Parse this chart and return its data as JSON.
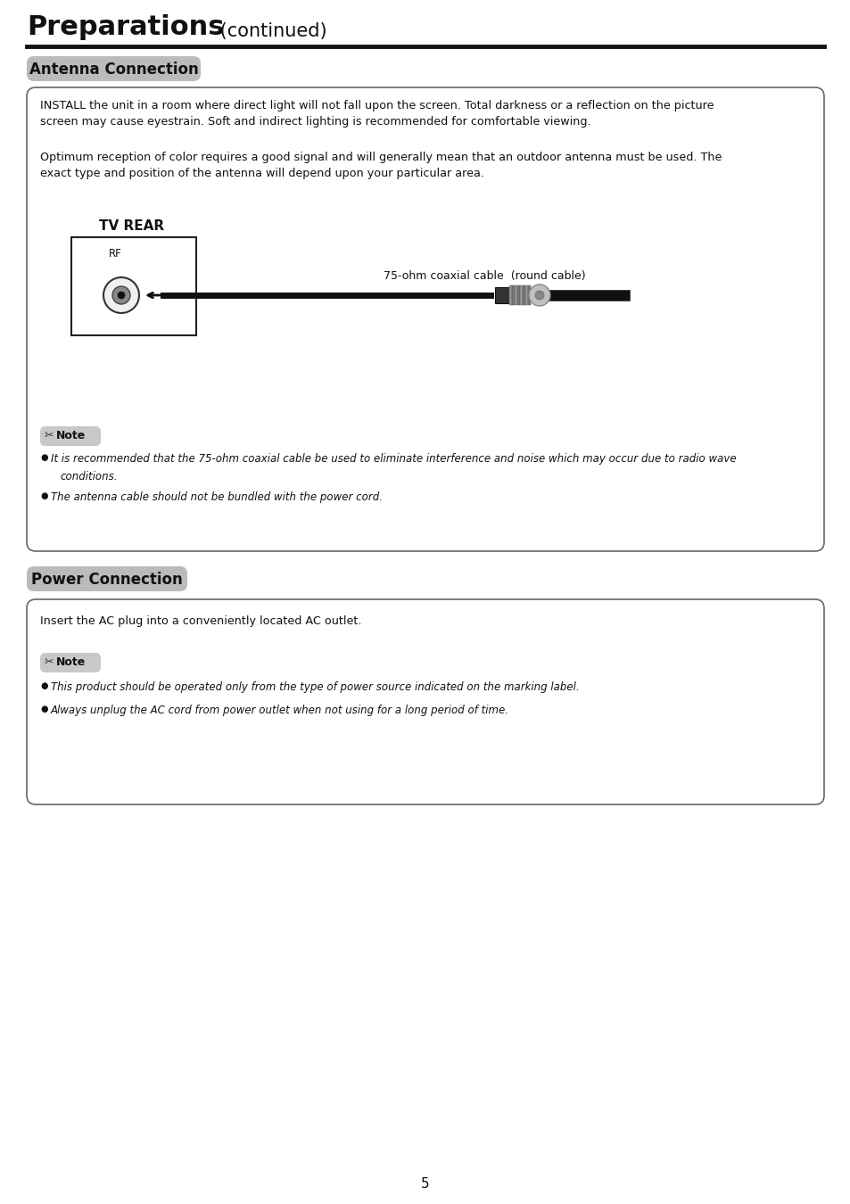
{
  "page_bg": "#ffffff",
  "title_bold": "Preparations",
  "title_normal": " (continued)",
  "section1_label": "Antenna Connection",
  "section2_label": "Power Connection",
  "antenna_para1": "INSTALL the unit in a room where direct light will not fall upon the screen. Total darkness or a reflection on the picture\nscreen may cause eyestrain. Soft and indirect lighting is recommended for comfortable viewing.",
  "antenna_para2": "Optimum reception of color requires a good signal and will generally mean that an outdoor antenna must be used. The\nexact type and position of the antenna will depend upon your particular area.",
  "tv_rear_label": "TV REAR",
  "rf_label": "RF",
  "coax_label": "75-ohm coaxial cable  (round cable)",
  "note1_b1": "It is recommended that the 75-ohm coaxial cable be used to eliminate interference and noise which may occur due to radio wave",
  "note1_b1_cont": "conditions.",
  "note1_b2": "The antenna cable should not be bundled with the power cord.",
  "power_text": "Insert the AC plug into a conveniently located AC outlet.",
  "note2_b1": "This product should be operated only from the type of power source indicated on the marking label.",
  "note2_b2": "Always unplug the AC cord from power outlet when not using for a long period of time.",
  "page_number": "5",
  "label_bg": "#bbbbbb",
  "note_bg": "#c8c8c8",
  "box_border": "#666666",
  "text_color": "#000000"
}
